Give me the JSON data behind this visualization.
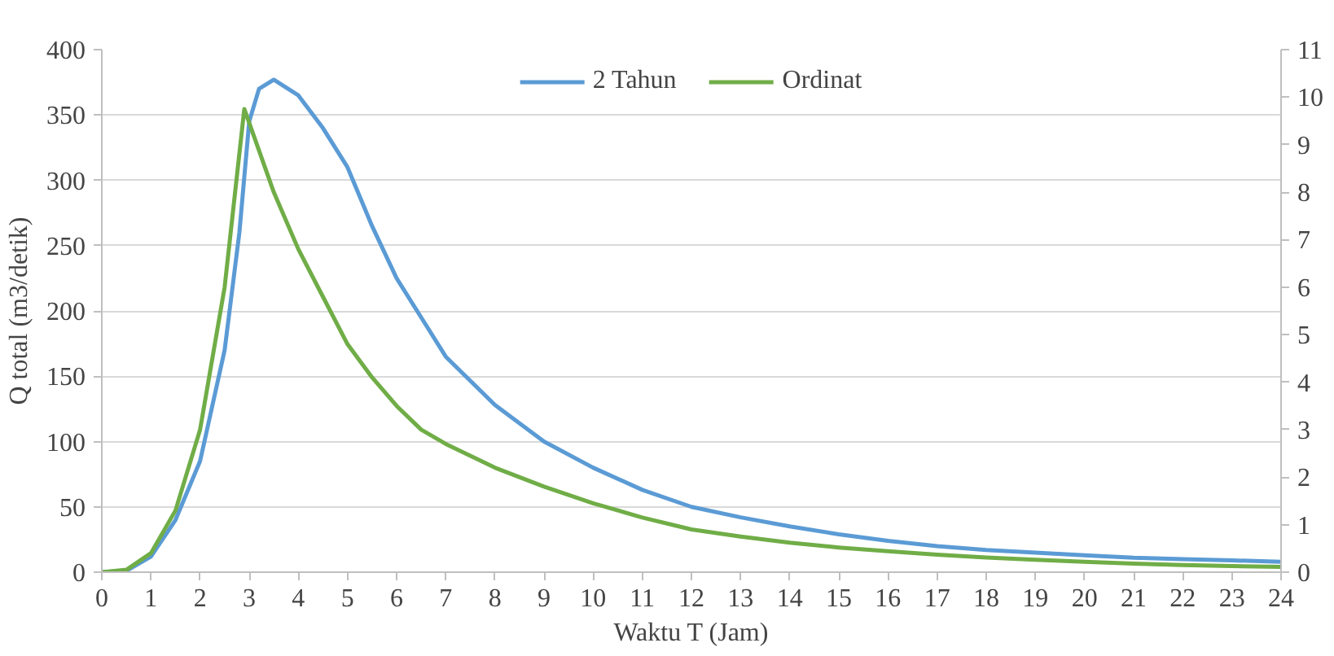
{
  "chart_data": {
    "type": "line",
    "xlabel": "Waktu T (Jam)",
    "ylabel": "Q total (m3/detik)",
    "xlim": [
      0,
      24
    ],
    "xticks": [
      0,
      1,
      2,
      3,
      4,
      5,
      6,
      7,
      8,
      9,
      10,
      11,
      12,
      13,
      14,
      15,
      16,
      17,
      18,
      19,
      20,
      21,
      22,
      23,
      24
    ],
    "ylim": [
      0,
      400
    ],
    "yticks": [
      0,
      50,
      100,
      150,
      200,
      250,
      300,
      350,
      400
    ],
    "y2lim": [
      0,
      11
    ],
    "y2ticks": [
      0,
      1,
      2,
      3,
      4,
      5,
      6,
      7,
      8,
      9,
      10,
      11
    ],
    "grid": "y",
    "legend": "top",
    "marker": "none",
    "line_style": "solid",
    "series": [
      {
        "name": "2 Tahun",
        "color": "#5b9bd5",
        "x": [
          0,
          0.5,
          1,
          1.5,
          2,
          2.5,
          2.8,
          3,
          3.2,
          3.5,
          4,
          4.5,
          5,
          5.5,
          6,
          7,
          8,
          9,
          10,
          11,
          12,
          13,
          14,
          15,
          16,
          17,
          18,
          19,
          20,
          21,
          22,
          23,
          24
        ],
        "values": [
          0,
          1,
          12,
          40,
          85,
          170,
          260,
          345,
          370,
          377,
          365,
          340,
          310,
          265,
          225,
          165,
          128,
          100,
          80,
          63,
          50,
          42,
          35,
          29,
          24,
          20,
          17,
          15,
          13,
          11,
          10,
          9,
          8
        ]
      },
      {
        "name": "Ordinat",
        "color": "#70ad47",
        "axis": "y2",
        "x": [
          0,
          0.5,
          1,
          1.5,
          2,
          2.5,
          2.9,
          3.5,
          4,
          4.5,
          5,
          5.5,
          6,
          6.5,
          7,
          8,
          9,
          10,
          11,
          12,
          13,
          14,
          15,
          16,
          17,
          18,
          19,
          20,
          21,
          22,
          23,
          24
        ],
        "values": [
          0,
          0.05,
          0.4,
          1.3,
          3,
          6,
          9.75,
          8,
          6.8,
          5.8,
          4.8,
          4.1,
          3.5,
          3.0,
          2.7,
          2.2,
          1.8,
          1.45,
          1.15,
          0.9,
          0.75,
          0.62,
          0.52,
          0.44,
          0.37,
          0.31,
          0.26,
          0.22,
          0.18,
          0.15,
          0.13,
          0.11
        ]
      }
    ]
  }
}
